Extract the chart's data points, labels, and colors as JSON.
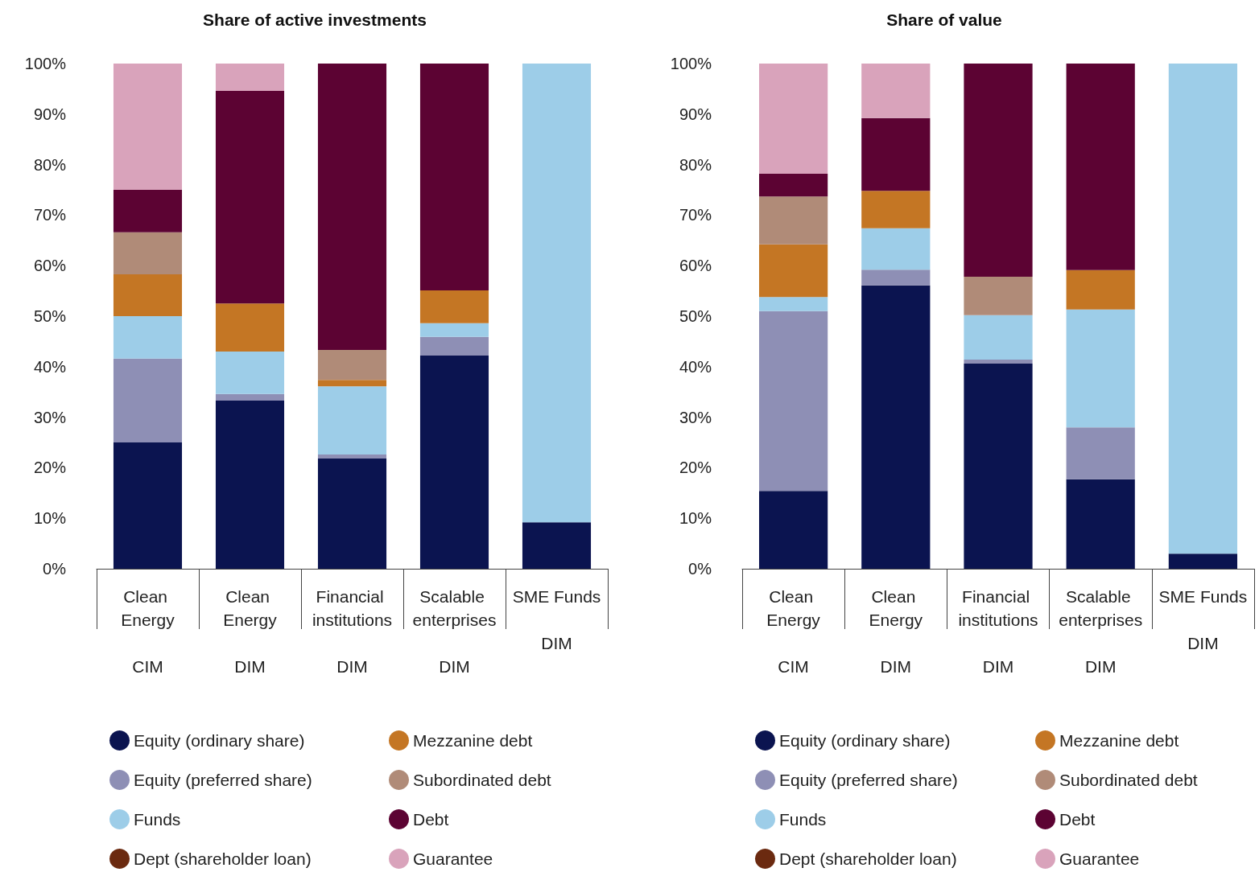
{
  "chart_data": [
    {
      "type": "bar",
      "stacked": true,
      "title": "Share of active investments",
      "categories": [
        "Clean Energy\nCIM",
        "Clean Energy\nDIM",
        "Financial institutions\nDIM",
        "Scalable enterprises\nDIM",
        "SME Funds\nDIM"
      ],
      "ylim": [
        0,
        100
      ],
      "yticks": [
        {
          "value": 0,
          "label": "0%"
        },
        {
          "value": 10,
          "label": "10%"
        },
        {
          "value": 20,
          "label": "20%"
        },
        {
          "value": 30,
          "label": "30%"
        },
        {
          "value": 40,
          "label": "40%"
        },
        {
          "value": 50,
          "label": "50%"
        },
        {
          "value": 60,
          "label": "60%"
        },
        {
          "value": 70,
          "label": "70%"
        },
        {
          "value": 80,
          "label": "80%"
        },
        {
          "value": 90,
          "label": "90%"
        },
        {
          "value": 100,
          "label": "100%"
        }
      ],
      "legend": "bottom",
      "series": [
        {
          "name": "Equity (ordinary share)",
          "color": "#0b1450",
          "values": [
            25.0,
            33.3,
            21.8,
            42.2,
            9.2
          ]
        },
        {
          "name": "Equity (preferred share)",
          "color": "#8e8fb5",
          "values": [
            16.6,
            1.3,
            0.8,
            3.7,
            0
          ]
        },
        {
          "name": "Funds",
          "color": "#9dcde8",
          "values": [
            8.4,
            8.4,
            13.5,
            2.7,
            90.8
          ]
        },
        {
          "name": "Dept (shareholder loan)",
          "color": "#6b2a10",
          "values": [
            0,
            0,
            0,
            0,
            0
          ]
        },
        {
          "name": "Mezzanine debt",
          "color": "#c47624",
          "values": [
            8.3,
            9.5,
            1.3,
            6.5,
            0
          ]
        },
        {
          "name": "Subordinated debt",
          "color": "#b08b78",
          "values": [
            8.3,
            0,
            5.9,
            0,
            0
          ]
        },
        {
          "name": "Debt",
          "color": "#5c0333",
          "values": [
            8.4,
            42.1,
            56.7,
            44.9,
            0
          ]
        },
        {
          "name": "Guarantee",
          "color": "#d9a3bb",
          "values": [
            25.0,
            5.4,
            0,
            0,
            0
          ]
        }
      ]
    },
    {
      "type": "bar",
      "stacked": true,
      "title": "Share of value",
      "categories": [
        "Clean Energy\nCIM",
        "Clean Energy\nDIM",
        "Financial institutions\nDIM",
        "Scalable enterprises\nDIM",
        "SME Funds\nDIM"
      ],
      "ylim": [
        0,
        100
      ],
      "yticks": [
        {
          "value": 0,
          "label": "0%"
        },
        {
          "value": 10,
          "label": "10%"
        },
        {
          "value": 20,
          "label": "20%"
        },
        {
          "value": 30,
          "label": "30%"
        },
        {
          "value": 40,
          "label": "40%"
        },
        {
          "value": 50,
          "label": "50%"
        },
        {
          "value": 60,
          "label": "60%"
        },
        {
          "value": 70,
          "label": "70%"
        },
        {
          "value": 80,
          "label": "80%"
        },
        {
          "value": 90,
          "label": "90%"
        },
        {
          "value": 100,
          "label": "100%"
        }
      ],
      "legend": "bottom",
      "series": [
        {
          "name": "Equity (ordinary share)",
          "color": "#0b1450",
          "values": [
            15.4,
            56.1,
            40.6,
            17.7,
            3.0
          ]
        },
        {
          "name": "Equity (preferred share)",
          "color": "#8e8fb5",
          "values": [
            35.6,
            3.1,
            0.8,
            10.3,
            0
          ]
        },
        {
          "name": "Funds",
          "color": "#9dcde8",
          "values": [
            2.8,
            8.2,
            8.8,
            23.3,
            97.0
          ]
        },
        {
          "name": "Dept (shareholder loan)",
          "color": "#6b2a10",
          "values": [
            0,
            0,
            0,
            0,
            0
          ]
        },
        {
          "name": "Mezzanine debt",
          "color": "#c47624",
          "values": [
            10.4,
            7.4,
            0,
            7.8,
            0
          ]
        },
        {
          "name": "Subordinated debt",
          "color": "#b08b78",
          "values": [
            9.5,
            0,
            7.6,
            0,
            0
          ]
        },
        {
          "name": "Debt",
          "color": "#5c0333",
          "values": [
            4.5,
            14.4,
            42.2,
            40.9,
            0
          ]
        },
        {
          "name": "Guarantee",
          "color": "#d9a3bb",
          "values": [
            21.8,
            10.8,
            0,
            0,
            0
          ]
        }
      ]
    }
  ]
}
